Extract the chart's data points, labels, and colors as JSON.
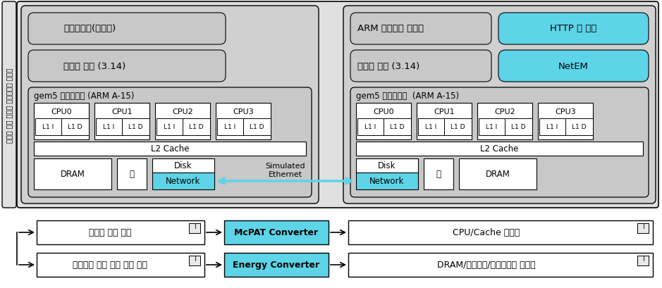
{
  "title": "모바일 전체 시스템 시뮬레이션 구성도",
  "bg_color": "#ffffff",
  "gray_outer": "#e0e0e0",
  "gray_box": "#d0d0d0",
  "gray_inner": "#c8c8c8",
  "cyan": "#5dd4e8",
  "white": "#ffffff",
  "black": "#000000",
  "left_os_label": "안드로이드(젤리빈)",
  "left_kernel_label": "리눅스 커널 (3.14)",
  "left_gem5_label": "gem5 시뮬레이터 (ARM A-15)",
  "right_os_label": "ARM 임베디드 리눅스",
  "right_os_cyan": "HTTP 웹 서버",
  "right_kernel_label": "리눅스 커널 (3.14)",
  "right_kernel_cyan": "NetEM",
  "right_gem5_label": "gem5 시뮬레이터  (ARM A-15)",
  "cpu_labels": [
    "CPU0",
    "CPU1",
    "CPU2",
    "CPU3"
  ],
  "l2_label": "L2 Cache",
  "dram_label": "DRAM",
  "io_label": "으",
  "disk_label": "Disk",
  "network_label": "Network",
  "simulated_ethernet": "Simulated\nEthernet",
  "bottom_row1_left": "시스템 구성 파일",
  "bottom_row1_mid": "McPAT Converter",
  "bottom_row1_right": "CPU/Cache 에너지",
  "bottom_row2_left": "아키텍처 수준 수행 결과 파일",
  "bottom_row2_mid": "Energy Converter",
  "bottom_row2_right": "DRAM/네트워크/디스플레이 에너지"
}
